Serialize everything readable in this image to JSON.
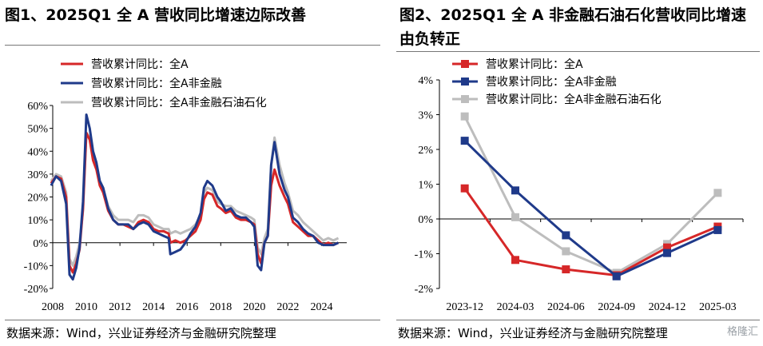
{
  "left_chart": {
    "title": "图1、2025Q1 全 A 营收同比增速边际改善",
    "source": "数据来源：Wind，兴业证券经济与金融研究院整理",
    "chart_data": {
      "type": "line",
      "title": "图1、2025Q1 全 A 营收同比增速边际改善",
      "xlabel": "",
      "ylabel": "",
      "ylim": [
        -20,
        60
      ],
      "xlim": [
        2008,
        2025.5
      ],
      "x_ticks": [
        "2008",
        "2010",
        "2012",
        "2014",
        "2016",
        "2018",
        "2020",
        "2022",
        "2024"
      ],
      "y_ticks": [
        "60%",
        "50%",
        "40%",
        "30%",
        "20%",
        "10%",
        "0%",
        "-10%",
        "-20%"
      ],
      "grid": false,
      "legend_position": "top-left",
      "series": [
        {
          "name": "营收累计同比：全A",
          "color": "#d62728",
          "x": [
            2007.9,
            2008.2,
            2008.5,
            2008.8,
            2009.0,
            2009.2,
            2009.4,
            2009.6,
            2009.8,
            2010.0,
            2010.2,
            2010.4,
            2010.6,
            2010.8,
            2011.0,
            2011.3,
            2011.6,
            2011.9,
            2012.2,
            2012.5,
            2012.8,
            2013.1,
            2013.4,
            2013.7,
            2014.0,
            2014.3,
            2014.6,
            2014.9,
            2015.0,
            2015.3,
            2015.6,
            2015.9,
            2016.2,
            2016.5,
            2016.8,
            2017.0,
            2017.2,
            2017.5,
            2017.8,
            2018.0,
            2018.3,
            2018.6,
            2018.9,
            2019.2,
            2019.5,
            2019.8,
            2020.0,
            2020.2,
            2020.4,
            2020.6,
            2020.8,
            2021.0,
            2021.2,
            2021.5,
            2021.8,
            2022.0,
            2022.3,
            2022.6,
            2022.9,
            2023.2,
            2023.5,
            2023.8,
            2024.1,
            2024.4,
            2024.7,
            2025.0
          ],
          "y": [
            26,
            29,
            28,
            20,
            -10,
            -13,
            -9,
            -3,
            15,
            48,
            45,
            36,
            32,
            25,
            22,
            14,
            10,
            8,
            8,
            7,
            6,
            9,
            10,
            9,
            6,
            5,
            5,
            4,
            0,
            1,
            0,
            1,
            3,
            5,
            10,
            19,
            22,
            21,
            16,
            15,
            13,
            14,
            11,
            10,
            10,
            9,
            8,
            -5,
            -9,
            0,
            3,
            25,
            32,
            25,
            20,
            17,
            9,
            7,
            5,
            3,
            3,
            1,
            -1,
            0,
            -1,
            0
          ]
        },
        {
          "name": "营收累计同比：全A非金融",
          "color": "#1f3a8a",
          "x": [
            2007.9,
            2008.2,
            2008.5,
            2008.8,
            2009.0,
            2009.2,
            2009.4,
            2009.6,
            2009.8,
            2010.0,
            2010.2,
            2010.4,
            2010.6,
            2010.8,
            2011.0,
            2011.3,
            2011.6,
            2011.9,
            2012.2,
            2012.5,
            2012.8,
            2013.1,
            2013.4,
            2013.7,
            2014.0,
            2014.3,
            2014.6,
            2014.9,
            2015.0,
            2015.3,
            2015.6,
            2015.9,
            2016.2,
            2016.5,
            2016.8,
            2017.0,
            2017.2,
            2017.5,
            2017.8,
            2018.0,
            2018.3,
            2018.6,
            2018.9,
            2019.2,
            2019.5,
            2019.8,
            2020.0,
            2020.2,
            2020.4,
            2020.6,
            2020.8,
            2021.0,
            2021.2,
            2021.5,
            2021.8,
            2022.0,
            2022.3,
            2022.6,
            2022.9,
            2023.2,
            2023.5,
            2023.8,
            2024.1,
            2024.4,
            2024.7,
            2025.0
          ],
          "y": [
            25,
            29,
            27,
            17,
            -14,
            -16,
            -11,
            -2,
            18,
            56,
            50,
            40,
            35,
            27,
            24,
            15,
            10,
            8,
            8,
            8,
            6,
            8,
            9,
            8,
            5,
            4,
            3,
            2,
            -5,
            -4,
            -3,
            0,
            4,
            7,
            13,
            24,
            27,
            25,
            20,
            18,
            14,
            15,
            12,
            11,
            11,
            9,
            7,
            -10,
            -12,
            0,
            3,
            34,
            44,
            30,
            23,
            20,
            11,
            9,
            6,
            4,
            3,
            0,
            -1,
            -1,
            -1,
            0
          ]
        },
        {
          "name": "营收累计同比：全A非金融石油石化",
          "color": "#bdbdbd",
          "x": [
            2007.9,
            2008.2,
            2008.5,
            2008.8,
            2009.0,
            2009.2,
            2009.4,
            2009.6,
            2009.8,
            2010.0,
            2010.2,
            2010.4,
            2010.6,
            2010.8,
            2011.0,
            2011.3,
            2011.6,
            2011.9,
            2012.2,
            2012.5,
            2012.8,
            2013.1,
            2013.4,
            2013.7,
            2014.0,
            2014.3,
            2014.6,
            2014.9,
            2015.0,
            2015.3,
            2015.6,
            2015.9,
            2016.2,
            2016.5,
            2016.8,
            2017.0,
            2017.2,
            2017.5,
            2017.8,
            2018.0,
            2018.3,
            2018.6,
            2018.9,
            2019.2,
            2019.5,
            2019.8,
            2020.0,
            2020.2,
            2020.4,
            2020.6,
            2020.8,
            2021.0,
            2021.2,
            2021.5,
            2021.8,
            2022.0,
            2022.3,
            2022.6,
            2022.9,
            2023.2,
            2023.5,
            2023.8,
            2024.1,
            2024.4,
            2024.7,
            2025.0
          ],
          "y": [
            27,
            30,
            29,
            22,
            -7,
            -10,
            -6,
            0,
            14,
            48,
            46,
            38,
            34,
            27,
            24,
            16,
            12,
            10,
            10,
            10,
            9,
            12,
            12,
            11,
            8,
            7,
            6,
            6,
            4,
            5,
            4,
            5,
            6,
            8,
            12,
            22,
            24,
            23,
            18,
            17,
            16,
            16,
            14,
            13,
            12,
            11,
            10,
            -2,
            -5,
            2,
            6,
            34,
            46,
            34,
            26,
            22,
            14,
            12,
            9,
            7,
            5,
            3,
            1,
            2,
            1,
            2
          ]
        }
      ]
    }
  },
  "right_chart": {
    "title": "图2、2025Q1 全 A 非金融石油石化营收同比增速由负转正",
    "source": "数据来源：Wind，兴业证券经济与金融研究院整理",
    "watermark": "格隆汇",
    "chart_data": {
      "type": "line",
      "title": "图2、2025Q1 全 A 非金融石油石化营收同比增速由负转正",
      "xlabel": "",
      "ylabel": "",
      "ylim": [
        -2,
        4
      ],
      "categories": [
        "2023-12",
        "2024-03",
        "2024-06",
        "2024-09",
        "2024-12",
        "2025-03"
      ],
      "y_ticks": [
        "4%",
        "3%",
        "2%",
        "1%",
        "0%",
        "-1%",
        "-2%"
      ],
      "grid": false,
      "legend_position": "top-left",
      "series": [
        {
          "name": "营收累计同比：全A",
          "color": "#d62728",
          "marker": "square",
          "values": [
            0.88,
            -1.18,
            -1.45,
            -1.62,
            -0.82,
            -0.22
          ]
        },
        {
          "name": "营收累计同比：全A非金融",
          "color": "#1f3a8a",
          "marker": "square",
          "values": [
            2.25,
            0.82,
            -0.47,
            -1.65,
            -0.98,
            -0.32
          ]
        },
        {
          "name": "营收累计同比：全A非金融石油石化",
          "color": "#bdbdbd",
          "marker": "square",
          "values": [
            2.95,
            0.05,
            -0.93,
            -1.55,
            -0.72,
            0.75
          ]
        }
      ]
    }
  }
}
